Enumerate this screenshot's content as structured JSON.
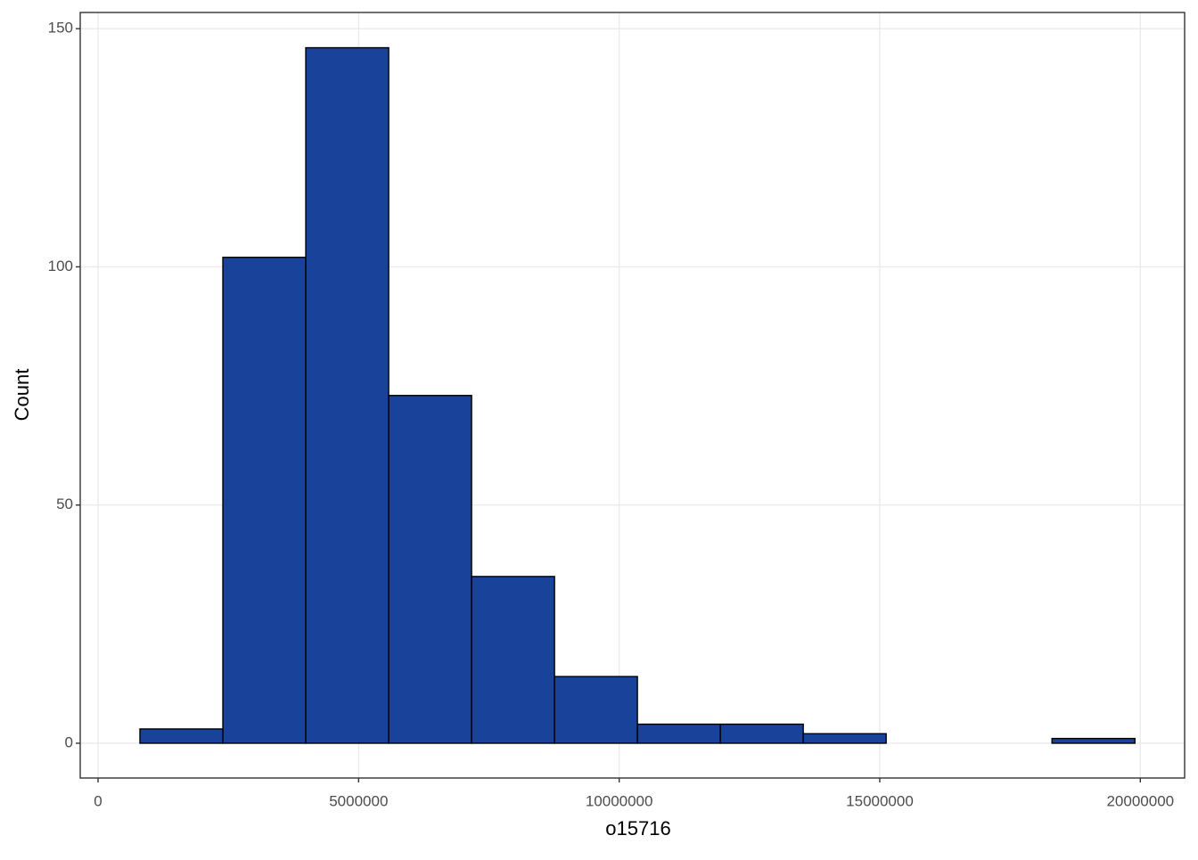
{
  "chart_data": {
    "type": "histogram",
    "x_label": "o15716",
    "y_label": "Count",
    "bins": [
      804000,
      2395000,
      3986000,
      5577000,
      7168000,
      8759000,
      10350000,
      11941000,
      13532000,
      15123000,
      16714000,
      18305000,
      19896000
    ],
    "values": [
      3,
      102,
      146,
      73,
      35,
      14,
      4,
      4,
      2,
      0,
      0,
      1
    ],
    "color": "#19439a",
    "edge_color": "#000000",
    "xlim": [
      -342000,
      20850000
    ],
    "ylim": [
      -7.3,
      153.4
    ],
    "xticks": [
      0,
      5000000,
      10000000,
      15000000,
      20000000
    ],
    "yticks": [
      0,
      50,
      100,
      150
    ],
    "grid": true
  }
}
